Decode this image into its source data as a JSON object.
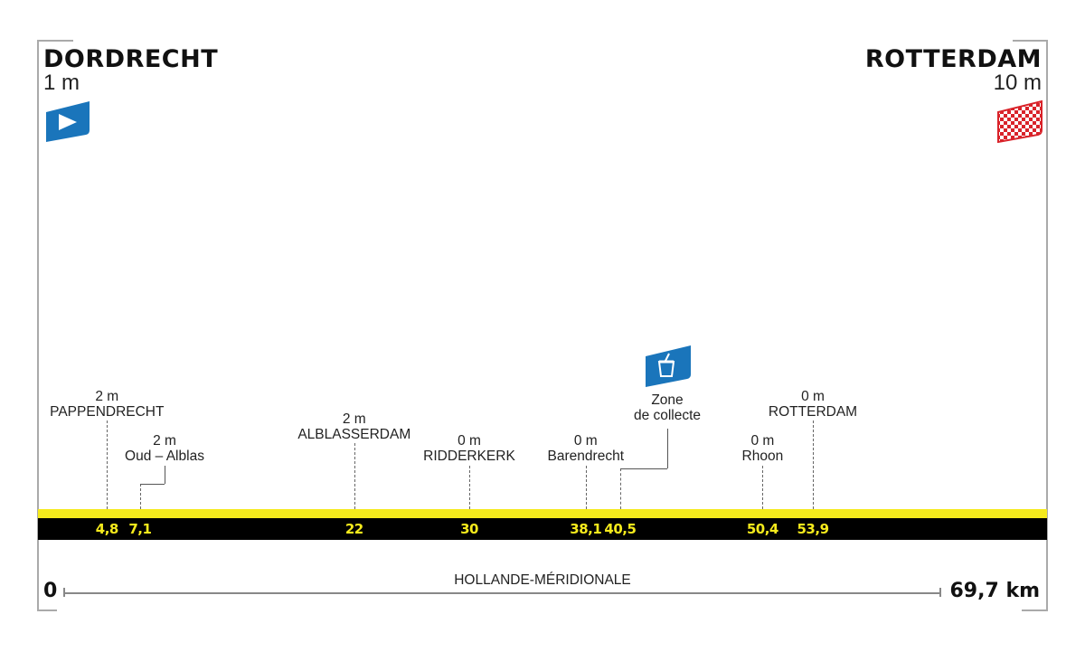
{
  "start": {
    "city": "DORDRECHT",
    "altitude": "1 m",
    "icon": "start-flag-icon"
  },
  "finish": {
    "city": "ROTTERDAM",
    "altitude": "10 m",
    "icon": "checkered-flag-icon"
  },
  "total_distance": "69,7 km",
  "axis_start": "0",
  "region": "HOLLANDE-MÉRIDIONALE",
  "colors": {
    "profile_yellow": "#f5ea1c",
    "bar": "#000000",
    "icon_blue": "#1a75bb",
    "finish_red": "#d9232a"
  },
  "waypoints": [
    {
      "km": 4.8,
      "km_label": "4,8",
      "altitude": "2 m",
      "name": "PAPPENDRECHT"
    },
    {
      "km": 7.1,
      "km_label": "7,1",
      "altitude": "2 m",
      "name": "Oud – Alblas"
    },
    {
      "km": 22,
      "km_label": "22",
      "altitude": "2 m",
      "name": "ALBLASSERDAM"
    },
    {
      "km": 30,
      "km_label": "30",
      "altitude": "0 m",
      "name": "RIDDERKERK"
    },
    {
      "km": 38.1,
      "km_label": "38,1",
      "altitude": "0 m",
      "name": "Barendrecht"
    },
    {
      "km": 40.5,
      "km_label": "40,5",
      "altitude": "",
      "name": "Zone de collecte",
      "name_lines": [
        "Zone",
        "de collecte"
      ],
      "icon": "collection-bin-icon"
    },
    {
      "km": 50.4,
      "km_label": "50,4",
      "altitude": "0 m",
      "name": "Rhoon"
    },
    {
      "km": 53.9,
      "km_label": "53,9",
      "altitude": "0 m",
      "name": "ROTTERDAM"
    }
  ]
}
